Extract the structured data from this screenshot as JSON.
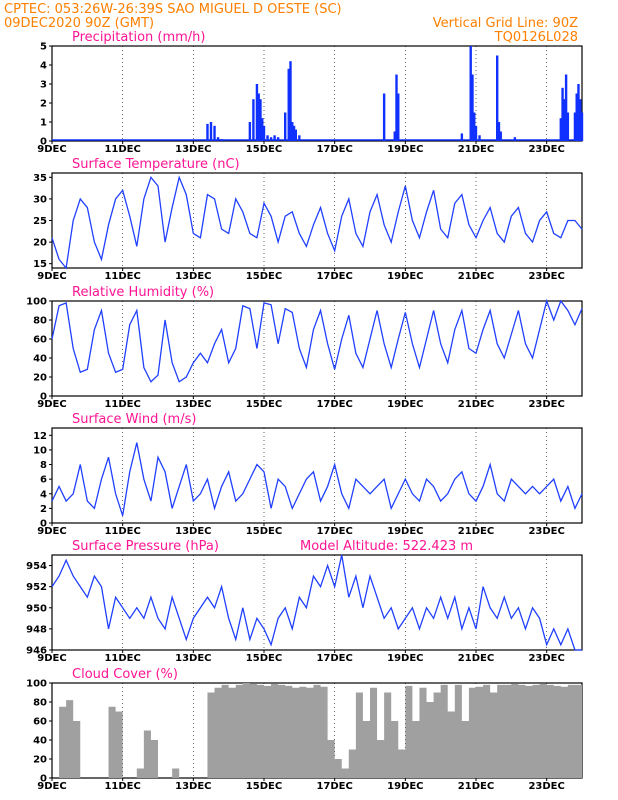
{
  "header": {
    "line1": "CPTEC:  053:26W-26:39S  SAO MIGUEL D OESTE (SC)",
    "line2_left": "09DEC2020 90Z (GMT)",
    "line2_right": "Vertical Grid Line: 90Z",
    "line3_right": "TQ0126L028"
  },
  "colors": {
    "header": "#ff7f00",
    "title": "#ff1493",
    "line": "#2040ff",
    "bar": "#1030ff",
    "cloud": "#a0a0a0"
  },
  "chart_data": [
    {
      "type": "bar",
      "title": "Precipitation (mm/h)",
      "x_range": [
        9,
        24
      ],
      "x_ticks": [
        "9DEC",
        "11DEC",
        "13DEC",
        "15DEC",
        "17DEC",
        "19DEC",
        "21DEC",
        "23DEC"
      ],
      "ylim": [
        0,
        5
      ],
      "y_ticks": [
        "0",
        "1",
        "2",
        "3",
        "4",
        "5"
      ],
      "x": [
        13.4,
        13.5,
        13.6,
        13.7,
        13.8,
        14.6,
        14.7,
        14.8,
        14.85,
        14.9,
        14.95,
        15.0,
        15.1,
        15.2,
        15.3,
        15.4,
        15.6,
        15.7,
        15.75,
        15.8,
        15.85,
        15.9,
        16.0,
        18.4,
        18.7,
        18.75,
        18.8,
        20.6,
        20.85,
        20.9,
        20.95,
        21.0,
        21.1,
        21.6,
        21.65,
        21.7,
        22.1,
        23.4,
        23.45,
        23.5,
        23.55,
        23.6,
        23.8,
        23.85,
        23.9,
        23.95,
        24.0
      ],
      "values": [
        0.9,
        1.0,
        0.8,
        0.2,
        0.1,
        1.0,
        2.2,
        3.0,
        2.5,
        2.2,
        1.2,
        0.8,
        0.3,
        0.2,
        0.3,
        0.2,
        1.5,
        3.8,
        4.2,
        1.0,
        0.8,
        0.6,
        0.3,
        2.5,
        0.5,
        3.5,
        2.5,
        0.4,
        5.0,
        3.5,
        1.5,
        0.8,
        0.3,
        4.5,
        1.0,
        0.5,
        0.2,
        1.2,
        2.8,
        2.2,
        3.5,
        1.5,
        1.5,
        2.5,
        3.0,
        2.2,
        1.5
      ]
    },
    {
      "type": "line",
      "title": "Surface Temperature (nC)",
      "x_range": [
        9,
        24
      ],
      "x_ticks": [
        "9DEC",
        "11DEC",
        "13DEC",
        "15DEC",
        "17DEC",
        "19DEC",
        "21DEC",
        "23DEC"
      ],
      "ylim": [
        14,
        36
      ],
      "y_ticks": [
        "15",
        "20",
        "25",
        "30",
        "35"
      ],
      "x": [
        9.0,
        9.2,
        9.4,
        9.6,
        9.8,
        10.0,
        10.2,
        10.4,
        10.6,
        10.8,
        11.0,
        11.2,
        11.4,
        11.6,
        11.8,
        12.0,
        12.2,
        12.4,
        12.6,
        12.8,
        13.0,
        13.2,
        13.4,
        13.6,
        13.8,
        14.0,
        14.2,
        14.4,
        14.6,
        14.8,
        15.0,
        15.2,
        15.4,
        15.6,
        15.8,
        16.0,
        16.2,
        16.4,
        16.6,
        16.8,
        17.0,
        17.2,
        17.4,
        17.6,
        17.8,
        18.0,
        18.2,
        18.4,
        18.6,
        18.8,
        19.0,
        19.2,
        19.4,
        19.6,
        19.8,
        20.0,
        20.2,
        20.4,
        20.6,
        20.8,
        21.0,
        21.2,
        21.4,
        21.6,
        21.8,
        22.0,
        22.2,
        22.4,
        22.6,
        22.8,
        23.0,
        23.2,
        23.4,
        23.6,
        23.8,
        24.0
      ],
      "values": [
        21,
        16,
        14,
        25,
        30,
        28,
        20,
        16,
        24,
        30,
        32,
        26,
        19,
        30,
        35,
        33,
        20,
        28,
        35,
        31,
        22,
        21,
        31,
        30,
        23,
        22,
        30,
        27,
        22,
        21,
        29,
        26,
        20,
        26,
        27,
        22,
        19,
        24,
        28,
        22,
        18,
        26,
        30,
        22,
        19,
        27,
        31,
        24,
        20,
        27,
        33,
        25,
        21,
        27,
        32,
        23,
        21,
        29,
        31,
        24,
        21,
        25,
        28,
        22,
        20,
        26,
        28,
        22,
        20,
        25,
        27,
        22,
        21,
        25,
        25,
        23
      ]
    },
    {
      "type": "line",
      "title": "Relative Humidity (%)",
      "x_range": [
        9,
        24
      ],
      "x_ticks": [
        "9DEC",
        "11DEC",
        "13DEC",
        "15DEC",
        "17DEC",
        "19DEC",
        "21DEC",
        "23DEC"
      ],
      "ylim": [
        0,
        100
      ],
      "y_ticks": [
        "0",
        "20",
        "40",
        "60",
        "80",
        "100"
      ],
      "x": [
        9.0,
        9.2,
        9.4,
        9.6,
        9.8,
        10.0,
        10.2,
        10.4,
        10.6,
        10.8,
        11.0,
        11.2,
        11.4,
        11.6,
        11.8,
        12.0,
        12.2,
        12.4,
        12.6,
        12.8,
        13.0,
        13.2,
        13.4,
        13.6,
        13.8,
        14.0,
        14.2,
        14.4,
        14.6,
        14.8,
        15.0,
        15.2,
        15.4,
        15.6,
        15.8,
        16.0,
        16.2,
        16.4,
        16.6,
        16.8,
        17.0,
        17.2,
        17.4,
        17.6,
        17.8,
        18.0,
        18.2,
        18.4,
        18.6,
        18.8,
        19.0,
        19.2,
        19.4,
        19.6,
        19.8,
        20.0,
        20.2,
        20.4,
        20.6,
        20.8,
        21.0,
        21.2,
        21.4,
        21.6,
        21.8,
        22.0,
        22.2,
        22.4,
        22.6,
        22.8,
        23.0,
        23.2,
        23.4,
        23.6,
        23.8,
        24.0
      ],
      "values": [
        60,
        95,
        98,
        50,
        25,
        28,
        70,
        90,
        45,
        25,
        28,
        75,
        90,
        30,
        15,
        22,
        80,
        35,
        15,
        20,
        35,
        45,
        35,
        55,
        70,
        35,
        50,
        95,
        92,
        50,
        98,
        96,
        55,
        92,
        88,
        50,
        30,
        70,
        90,
        55,
        28,
        60,
        85,
        45,
        30,
        60,
        90,
        55,
        30,
        60,
        88,
        55,
        30,
        60,
        90,
        55,
        35,
        70,
        90,
        50,
        45,
        70,
        90,
        55,
        40,
        65,
        90,
        55,
        40,
        70,
        100,
        80,
        100,
        90,
        75,
        92
      ]
    },
    {
      "type": "line",
      "title": "Surface Wind (m/s)",
      "x_range": [
        9,
        24
      ],
      "x_ticks": [
        "9DEC",
        "11DEC",
        "13DEC",
        "15DEC",
        "17DEC",
        "19DEC",
        "21DEC",
        "23DEC"
      ],
      "ylim": [
        0,
        13
      ],
      "y_ticks": [
        "0",
        "2",
        "4",
        "6",
        "8",
        "10",
        "12"
      ],
      "x": [
        9.0,
        9.2,
        9.4,
        9.6,
        9.8,
        10.0,
        10.2,
        10.4,
        10.6,
        10.8,
        11.0,
        11.2,
        11.4,
        11.6,
        11.8,
        12.0,
        12.2,
        12.4,
        12.6,
        12.8,
        13.0,
        13.2,
        13.4,
        13.6,
        13.8,
        14.0,
        14.2,
        14.4,
        14.6,
        14.8,
        15.0,
        15.2,
        15.4,
        15.6,
        15.8,
        16.0,
        16.2,
        16.4,
        16.6,
        16.8,
        17.0,
        17.2,
        17.4,
        17.6,
        17.8,
        18.0,
        18.2,
        18.4,
        18.6,
        18.8,
        19.0,
        19.2,
        19.4,
        19.6,
        19.8,
        20.0,
        20.2,
        20.4,
        20.6,
        20.8,
        21.0,
        21.2,
        21.4,
        21.6,
        21.8,
        22.0,
        22.2,
        22.4,
        22.6,
        22.8,
        23.0,
        23.2,
        23.4,
        23.6,
        23.8,
        24.0
      ],
      "values": [
        3,
        5,
        3,
        4,
        8,
        3,
        2,
        6,
        9,
        4,
        1,
        7,
        11,
        6,
        3,
        9,
        7,
        2,
        5,
        8,
        3,
        4,
        6,
        2,
        5,
        7,
        3,
        4,
        6,
        8,
        7,
        2,
        6,
        5,
        2,
        4,
        6,
        7,
        3,
        5,
        8,
        4,
        2,
        6,
        5,
        4,
        5,
        6,
        2,
        4,
        6,
        4,
        3,
        6,
        5,
        3,
        4,
        6,
        7,
        4,
        3,
        5,
        8,
        4,
        3,
        6,
        5,
        4,
        5,
        4,
        5,
        6,
        3,
        5,
        2,
        4
      ]
    },
    {
      "type": "line",
      "title": "Surface Pressure (hPa)",
      "annotation": "Model Altitude:  522.423  m",
      "x_range": [
        9,
        24
      ],
      "x_ticks": [
        "9DEC",
        "11DEC",
        "13DEC",
        "15DEC",
        "17DEC",
        "19DEC",
        "21DEC",
        "23DEC"
      ],
      "ylim": [
        946,
        955
      ],
      "y_ticks": [
        "946",
        "948",
        "950",
        "952",
        "954"
      ],
      "x": [
        9.0,
        9.2,
        9.4,
        9.6,
        9.8,
        10.0,
        10.2,
        10.4,
        10.6,
        10.8,
        11.0,
        11.2,
        11.4,
        11.6,
        11.8,
        12.0,
        12.2,
        12.4,
        12.6,
        12.8,
        13.0,
        13.2,
        13.4,
        13.6,
        13.8,
        14.0,
        14.2,
        14.4,
        14.6,
        14.8,
        15.0,
        15.2,
        15.4,
        15.6,
        15.8,
        16.0,
        16.2,
        16.4,
        16.6,
        16.8,
        17.0,
        17.2,
        17.4,
        17.6,
        17.8,
        18.0,
        18.2,
        18.4,
        18.6,
        18.8,
        19.0,
        19.2,
        19.4,
        19.6,
        19.8,
        20.0,
        20.2,
        20.4,
        20.6,
        20.8,
        21.0,
        21.2,
        21.4,
        21.6,
        21.8,
        22.0,
        22.2,
        22.4,
        22.6,
        22.8,
        23.0,
        23.2,
        23.4,
        23.6,
        23.8,
        24.0
      ],
      "values": [
        952,
        953,
        954.5,
        953,
        952,
        951,
        953,
        952,
        948,
        951,
        950,
        949,
        950,
        949,
        951,
        949,
        948,
        951,
        949,
        947,
        949,
        950,
        951,
        950,
        952,
        949,
        947,
        950,
        947,
        949,
        948,
        946.5,
        949,
        950,
        948,
        951,
        950,
        953,
        952,
        954,
        952,
        955,
        951,
        953,
        950,
        953,
        951,
        949,
        950,
        948,
        949,
        950,
        948,
        950,
        949,
        951,
        949,
        951,
        948,
        950,
        948,
        952,
        950,
        949,
        951,
        949,
        950,
        948,
        950,
        949,
        946.5,
        948,
        946.5,
        948,
        946,
        946
      ]
    },
    {
      "type": "area",
      "title": "Cloud Cover (%)",
      "x_range": [
        9,
        24
      ],
      "x_ticks": [
        "9DEC",
        "11DEC",
        "13DEC",
        "15DEC",
        "17DEC",
        "19DEC",
        "21DEC",
        "23DEC"
      ],
      "ylim": [
        0,
        100
      ],
      "y_ticks": [
        "0",
        "20",
        "40",
        "60",
        "80",
        "100"
      ],
      "x": [
        9.0,
        9.2,
        9.4,
        9.6,
        9.8,
        10.0,
        10.2,
        10.4,
        10.6,
        10.8,
        11.0,
        11.2,
        11.4,
        11.6,
        11.8,
        12.0,
        12.2,
        12.4,
        12.6,
        12.8,
        13.0,
        13.2,
        13.4,
        13.6,
        13.8,
        14.0,
        14.2,
        14.4,
        14.6,
        14.8,
        15.0,
        15.2,
        15.4,
        15.6,
        15.8,
        16.0,
        16.2,
        16.4,
        16.6,
        16.8,
        17.0,
        17.2,
        17.4,
        17.6,
        17.8,
        18.0,
        18.2,
        18.4,
        18.6,
        18.8,
        19.0,
        19.2,
        19.4,
        19.6,
        19.8,
        20.0,
        20.2,
        20.4,
        20.6,
        20.8,
        21.0,
        21.2,
        21.4,
        21.6,
        21.8,
        22.0,
        22.2,
        22.4,
        22.6,
        22.8,
        23.0,
        23.2,
        23.4,
        23.6,
        23.8,
        24.0
      ],
      "values": [
        0,
        75,
        82,
        60,
        0,
        0,
        0,
        0,
        75,
        70,
        0,
        0,
        10,
        50,
        40,
        0,
        0,
        10,
        0,
        0,
        0,
        0,
        90,
        95,
        98,
        95,
        98,
        100,
        99,
        98,
        97,
        99,
        98,
        97,
        95,
        96,
        95,
        98,
        96,
        40,
        20,
        10,
        30,
        90,
        60,
        95,
        40,
        90,
        60,
        30,
        97,
        60,
        95,
        80,
        90,
        98,
        70,
        98,
        60,
        95,
        96,
        98,
        90,
        98,
        98,
        99,
        98,
        97,
        98,
        99,
        98,
        97,
        96,
        98,
        98,
        98
      ]
    }
  ]
}
